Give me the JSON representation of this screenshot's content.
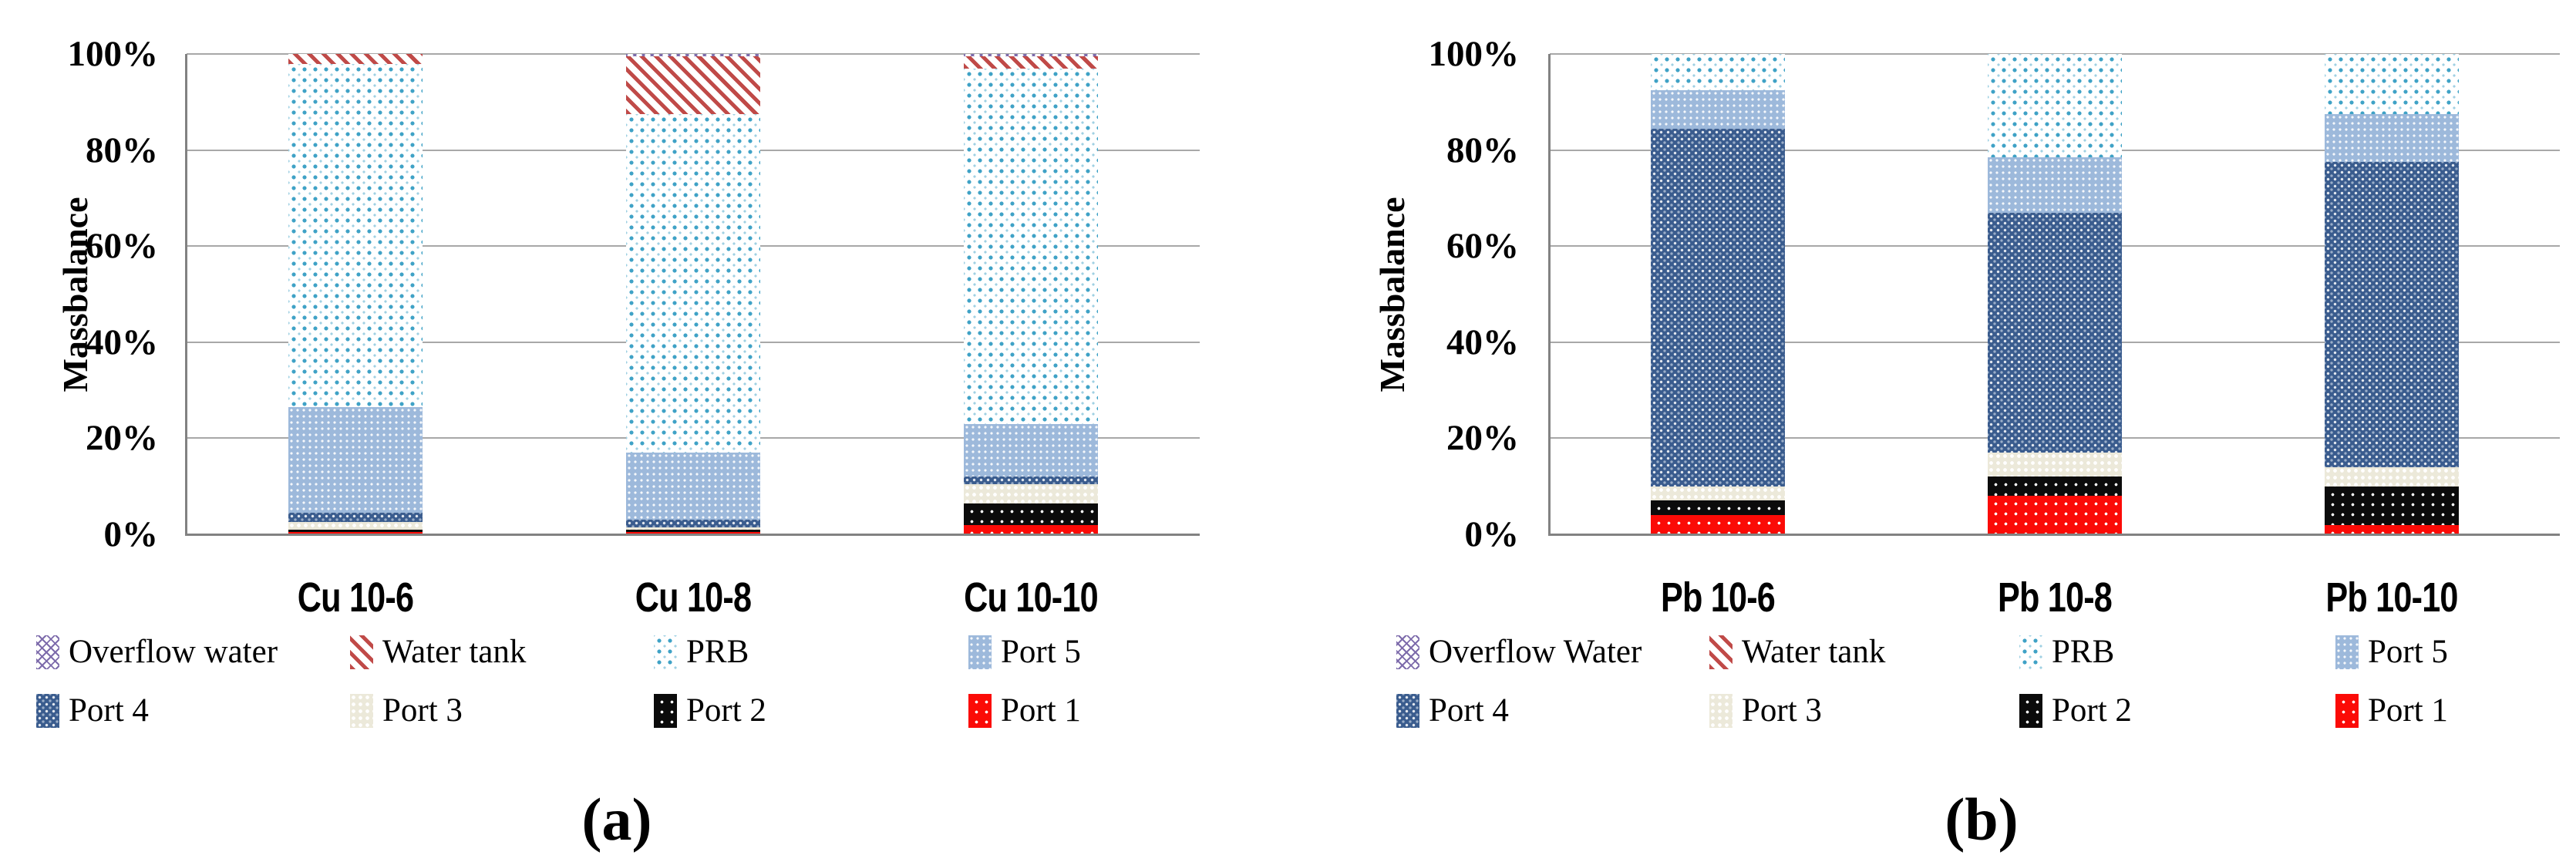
{
  "figure": {
    "background": "#ffffff",
    "text_color": "#000000",
    "gridline_color": "#a8a8a8",
    "axis_color": "#828282"
  },
  "colors": {
    "port1": "#fb0b07",
    "port2": "#0b0b0b",
    "port3": "#ece9da",
    "port4": "#3a5c8e",
    "port5": "#9db9db",
    "prb_dot": "#3fa2c6",
    "water_tank_stripe": "#c04a48",
    "overflow_water": "#7d6bab"
  },
  "patterns": {
    "port1": "red-with-white-dots",
    "port2": "black-with-white-dots",
    "port3": "cream-with-white-dots",
    "port4": "dark-navy-checker",
    "port5": "medium-blue-checker",
    "prb": "white-with-blue-dots",
    "water_tank": "red-diagonal-stripes",
    "overflow_water": "purple-zigzag"
  },
  "chart_data": [
    {
      "id": "a",
      "type": "bar",
      "stacked": true,
      "stacked_percent": true,
      "caption": "(a)",
      "ylabel": "Massbalance",
      "ylim": [
        0,
        100
      ],
      "grid": true,
      "ytick_values": [
        100,
        80,
        60,
        40,
        20,
        0
      ],
      "ytick_labels": [
        "100%",
        "80%",
        "60%",
        "40%",
        "20%",
        "0%"
      ],
      "categories": [
        "Cu  10-6",
        "Cu  10-8",
        "Cu  10-10"
      ],
      "series": [
        {
          "name": "Port 1",
          "values": [
            0.5,
            0.5,
            2.0
          ]
        },
        {
          "name": "Port 2",
          "values": [
            0.5,
            0.5,
            4.5
          ]
        },
        {
          "name": "Port 3",
          "values": [
            1.5,
            0.5,
            4.0
          ]
        },
        {
          "name": "Port 4",
          "values": [
            2.0,
            1.5,
            1.5
          ]
        },
        {
          "name": "Port 5",
          "values": [
            22.0,
            14.0,
            11.0
          ]
        },
        {
          "name": "PRB",
          "values": [
            71.5,
            70.5,
            74.0
          ]
        },
        {
          "name": "Water tank",
          "values": [
            2.0,
            12.0,
            2.5
          ]
        },
        {
          "name": "Overflow water",
          "values": [
            0.0,
            0.5,
            0.5
          ]
        }
      ],
      "legend_rows": [
        [
          "Overflow water",
          "Water tank",
          "PRB",
          "Port 5"
        ],
        [
          "Port 4",
          "Port 3",
          "Port 2",
          "Port 1"
        ]
      ],
      "legend_position": "bottom"
    },
    {
      "id": "b",
      "type": "bar",
      "stacked": true,
      "stacked_percent": true,
      "caption": "(b)",
      "ylabel": "Massbalance",
      "ylim": [
        0,
        100
      ],
      "grid": true,
      "ytick_values": [
        100,
        80,
        60,
        40,
        20,
        0
      ],
      "ytick_labels": [
        "100%",
        "80%",
        "60%",
        "40%",
        "20%",
        "0%"
      ],
      "categories": [
        "Pb 10-6",
        "Pb 10-8",
        "Pb 10-10"
      ],
      "series": [
        {
          "name": "Port 1",
          "values": [
            4.0,
            8.0,
            2.0
          ]
        },
        {
          "name": "Port 2",
          "values": [
            3.0,
            4.0,
            8.0
          ]
        },
        {
          "name": "Port 3",
          "values": [
            3.0,
            5.0,
            4.0
          ]
        },
        {
          "name": "Port 4",
          "values": [
            74.5,
            50.0,
            63.5
          ]
        },
        {
          "name": "Port 5",
          "values": [
            8.0,
            11.5,
            10.0
          ]
        },
        {
          "name": "PRB",
          "values": [
            7.5,
            21.5,
            12.5
          ]
        },
        {
          "name": "Water tank",
          "values": [
            0.0,
            0.0,
            0.0
          ]
        },
        {
          "name": "Overflow Water",
          "values": [
            0.0,
            0.0,
            0.0
          ]
        }
      ],
      "legend_rows": [
        [
          "Overflow Water",
          "Water tank",
          "PRB",
          "Port 5"
        ],
        [
          "Port 4",
          "Port 3",
          "Port 2",
          "Port 1"
        ]
      ],
      "legend_position": "bottom"
    }
  ]
}
